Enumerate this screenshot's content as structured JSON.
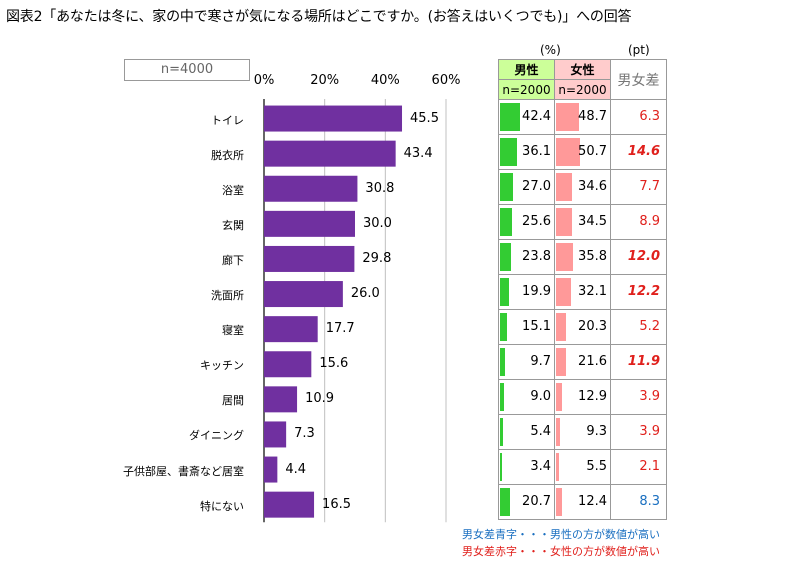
{
  "title": "図表2「あなたは冬に、家の中で寒さが気になる場所はどこですか。(お答えはいくつでも)」への回答",
  "sample_label": "n=4000",
  "units": {
    "percent": "(%)",
    "pt": "(pt)"
  },
  "columns": {
    "male_label": "男性",
    "male_n": "n=2000",
    "female_label": "女性",
    "female_n": "n=2000",
    "diff_label": "男女差"
  },
  "colors": {
    "bar": "#7030a0",
    "male_bar": "#33cc33",
    "female_bar": "#ff9999",
    "diff_red": "#e0201c",
    "diff_blue": "#1a6fc0",
    "male_header_bg": "#ccff99",
    "female_header_bg": "#ffcccc"
  },
  "legend": {
    "blue": "男女差青字・・・男性の方が数値が高い",
    "red": "男女差赤字・・・女性の方が数値が高い"
  },
  "chart_data": {
    "type": "bar",
    "orientation": "horizontal",
    "title": "図表2",
    "xlim": [
      0,
      60
    ],
    "xticks": [
      "0%",
      "20%",
      "40%",
      "60%"
    ],
    "categories": [
      "トイレ",
      "脱衣所",
      "浴室",
      "玄関",
      "廊下",
      "洗面所",
      "寝室",
      "キッチン",
      "居間",
      "ダイニング",
      "子供部屋、書斎など居室",
      "特にない"
    ],
    "values": [
      45.5,
      43.4,
      30.8,
      30.0,
      29.8,
      26.0,
      17.7,
      15.6,
      10.9,
      7.3,
      4.4,
      16.5
    ],
    "value_labels": [
      "45.5",
      "43.4",
      "30.8",
      "30.0",
      "29.8",
      "26.0",
      "17.7",
      "15.6",
      "10.9",
      "7.3",
      "4.4",
      "16.5"
    ],
    "male": [
      "42.4",
      "36.1",
      "27.0",
      "25.6",
      "23.8",
      "19.9",
      "15.1",
      "9.7",
      "9.0",
      "5.4",
      "3.4",
      "20.7"
    ],
    "female": [
      "48.7",
      "50.7",
      "34.6",
      "34.5",
      "35.8",
      "32.1",
      "20.3",
      "21.6",
      "12.9",
      "9.3",
      "5.5",
      "12.4"
    ],
    "diff": [
      "6.3",
      "14.6",
      "7.7",
      "8.9",
      "12.0",
      "12.2",
      "5.2",
      "11.9",
      "3.9",
      "3.9",
      "2.1",
      "8.3"
    ],
    "diff_bold": [
      false,
      true,
      false,
      false,
      true,
      true,
      false,
      true,
      false,
      false,
      false,
      false
    ],
    "diff_color": [
      "red",
      "red",
      "red",
      "red",
      "red",
      "red",
      "red",
      "red",
      "red",
      "red",
      "red",
      "blue"
    ]
  }
}
